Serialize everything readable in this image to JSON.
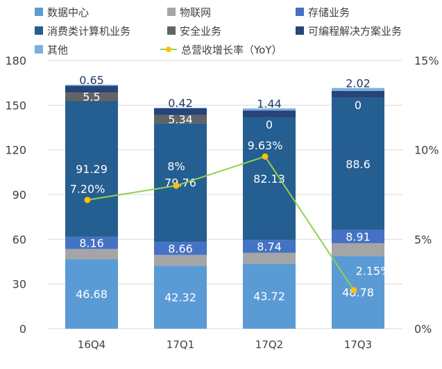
{
  "chart_data": {
    "type": "bar",
    "stacked": true,
    "categories": [
      "16Q4",
      "17Q1",
      "17Q2",
      "17Q3"
    ],
    "series": [
      {
        "name": "数据中心",
        "color": "#5b9bd5",
        "values": [
          46.68,
          42.32,
          43.72,
          48.78
        ],
        "labels": [
          "46.68",
          "42.32",
          "43.72",
          "48.78"
        ]
      },
      {
        "name": "物联网",
        "color": "#a5a5a5",
        "values": [
          6.8,
          7.2,
          7.2,
          8.6
        ],
        "labels": [
          null,
          null,
          null,
          null
        ]
      },
      {
        "name": "存储业务",
        "color": "#4472c4",
        "values": [
          8.16,
          8.66,
          8.74,
          8.91
        ],
        "labels": [
          "8.16",
          "8.66",
          "8.74",
          "8.91"
        ]
      },
      {
        "name": "消费类计算机业务",
        "color": "#255e91",
        "values": [
          91.29,
          79.76,
          82.13,
          88.6
        ],
        "labels": [
          "91.29",
          "79.76",
          "82.13",
          "88.6"
        ]
      },
      {
        "name": "安全业务",
        "color": "#636363",
        "values": [
          5.5,
          5.34,
          0,
          0
        ],
        "labels": [
          "5.5",
          "5.34",
          "0",
          "0"
        ]
      },
      {
        "name": "可编程解决方案业务",
        "color": "#264478",
        "values": [
          4.6,
          4.6,
          4.6,
          4.6
        ],
        "labels": [
          null,
          null,
          null,
          null
        ]
      },
      {
        "name": "其他",
        "color": "#7cafdd",
        "values": [
          0.65,
          0.42,
          1.44,
          2.02
        ],
        "labels": [
          "0.65",
          "0.42",
          "1.44",
          "2.02"
        ]
      }
    ],
    "line": {
      "name": "总营收增长率（YoY）",
      "color": "#92d050",
      "marker_color": "#ffc000",
      "values": [
        7.2,
        8,
        9.63,
        2.15
      ],
      "labels": [
        "7.20%",
        "8%",
        "9.63%",
        "2.15%"
      ]
    },
    "y_left": {
      "range": [
        0,
        180
      ],
      "ticks": [
        "0",
        "30",
        "60",
        "90",
        "120",
        "150",
        "180"
      ]
    },
    "y_right": {
      "range": [
        0,
        15
      ],
      "ticks": [
        "0%",
        "5%",
        "10%",
        "15%"
      ]
    },
    "grid": true,
    "legend": "top"
  }
}
